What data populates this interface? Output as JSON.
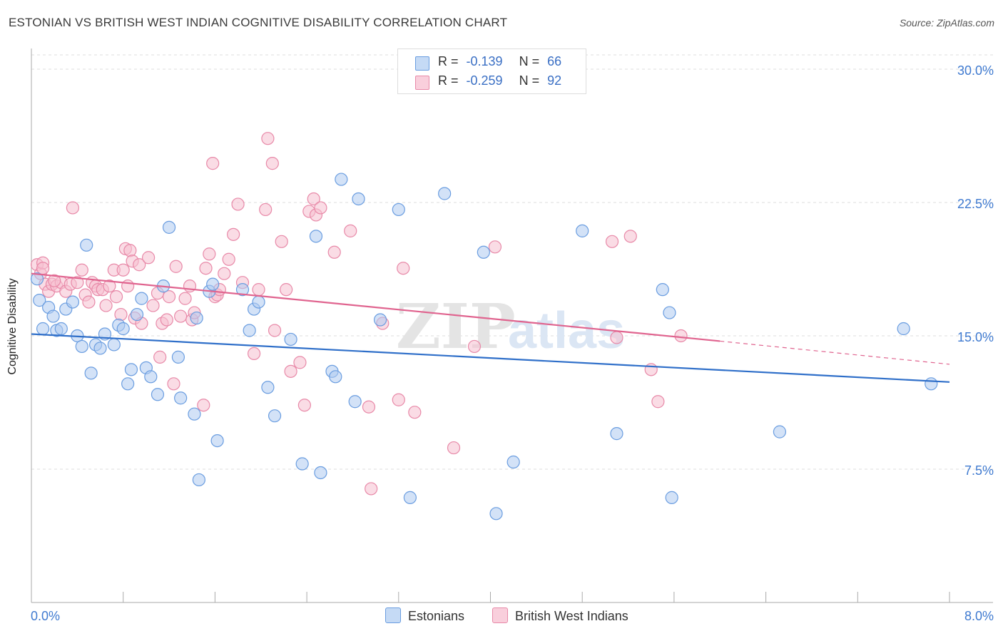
{
  "header": {
    "title": "ESTONIAN VS BRITISH WEST INDIAN COGNITIVE DISABILITY CORRELATION CHART",
    "source": "Source: ZipAtlas.com"
  },
  "stats": {
    "r_label": "R =",
    "n_label": "N =",
    "rows": [
      {
        "r": "-0.139",
        "n": "66"
      },
      {
        "r": "-0.259",
        "n": "92"
      }
    ]
  },
  "legend": {
    "items": [
      "Estonians",
      "British West Indians"
    ]
  },
  "watermark": {
    "zip": "ZIP",
    "atlas": "atlas"
  },
  "colors": {
    "estonians_fill": "#aecbf0",
    "estonians_stroke": "#6a9de0",
    "estonians_line": "#2f6fc9",
    "bwi_fill": "#f6bfd0",
    "bwi_stroke": "#e889a8",
    "bwi_line": "#e0648f",
    "tick_label": "#3f7ad0",
    "grid": "#dddddd"
  },
  "chart_data": {
    "type": "scatter",
    "title": "ESTONIAN VS BRITISH WEST INDIAN COGNITIVE DISABILITY CORRELATION CHART",
    "xlabel": "",
    "ylabel": "Cognitive Disability",
    "xlim": [
      0,
      8
    ],
    "ylim": [
      0,
      30.8
    ],
    "x_tick_labels": [
      "0.0%",
      "8.0%"
    ],
    "y_ticks": [
      7.5,
      15.0,
      22.5,
      30.0
    ],
    "y_tick_labels": [
      "7.5%",
      "15.0%",
      "22.5%",
      "30.0%"
    ],
    "grid": "horizontal dashed",
    "legend_position": "bottom-center",
    "series": [
      {
        "name": "Estonians",
        "r": -0.139,
        "n": 66,
        "trend": {
          "x": [
            0,
            8
          ],
          "y": [
            15.1,
            12.4
          ]
        },
        "points": [
          [
            0.05,
            18.2
          ],
          [
            0.07,
            17.0
          ],
          [
            0.1,
            15.4
          ],
          [
            0.15,
            16.6
          ],
          [
            0.19,
            16.1
          ],
          [
            0.22,
            15.3
          ],
          [
            0.26,
            15.4
          ],
          [
            0.3,
            16.5
          ],
          [
            0.36,
            16.9
          ],
          [
            0.4,
            15.0
          ],
          [
            0.44,
            14.4
          ],
          [
            0.48,
            20.1
          ],
          [
            0.52,
            12.9
          ],
          [
            0.56,
            14.5
          ],
          [
            0.6,
            14.3
          ],
          [
            0.64,
            15.1
          ],
          [
            0.72,
            14.5
          ],
          [
            0.76,
            15.6
          ],
          [
            0.8,
            15.4
          ],
          [
            0.84,
            12.3
          ],
          [
            0.87,
            13.1
          ],
          [
            0.92,
            16.2
          ],
          [
            0.96,
            17.1
          ],
          [
            1.0,
            13.2
          ],
          [
            1.04,
            12.7
          ],
          [
            1.1,
            11.7
          ],
          [
            1.15,
            17.8
          ],
          [
            1.2,
            21.1
          ],
          [
            1.28,
            13.8
          ],
          [
            1.3,
            11.5
          ],
          [
            1.42,
            10.6
          ],
          [
            1.44,
            16.0
          ],
          [
            1.46,
            6.9
          ],
          [
            1.55,
            17.5
          ],
          [
            1.58,
            17.9
          ],
          [
            1.62,
            9.1
          ],
          [
            1.84,
            17.6
          ],
          [
            1.9,
            15.3
          ],
          [
            1.94,
            16.5
          ],
          [
            1.98,
            16.9
          ],
          [
            2.06,
            12.1
          ],
          [
            2.12,
            10.5
          ],
          [
            2.26,
            14.8
          ],
          [
            2.36,
            7.8
          ],
          [
            2.48,
            20.6
          ],
          [
            2.52,
            7.3
          ],
          [
            2.62,
            13.0
          ],
          [
            2.65,
            12.7
          ],
          [
            2.7,
            23.8
          ],
          [
            2.82,
            11.3
          ],
          [
            2.85,
            22.7
          ],
          [
            3.04,
            15.9
          ],
          [
            3.2,
            22.1
          ],
          [
            3.3,
            5.9
          ],
          [
            3.6,
            23.0
          ],
          [
            3.94,
            19.7
          ],
          [
            4.05,
            5.0
          ],
          [
            4.2,
            7.9
          ],
          [
            4.8,
            20.9
          ],
          [
            5.1,
            9.5
          ],
          [
            5.5,
            17.6
          ],
          [
            5.56,
            16.3
          ],
          [
            5.58,
            5.9
          ],
          [
            6.52,
            9.6
          ],
          [
            7.6,
            15.4
          ],
          [
            7.84,
            12.3
          ]
        ]
      },
      {
        "name": "British West Indians",
        "r": -0.259,
        "n": 92,
        "trend": {
          "x": [
            0,
            6.0
          ],
          "y": [
            18.5,
            14.7
          ]
        },
        "trend_dashed": {
          "x": [
            6.0,
            8.0
          ],
          "y": [
            14.7,
            13.4
          ]
        },
        "points": [
          [
            0.05,
            19.0
          ],
          [
            0.08,
            18.5
          ],
          [
            0.1,
            19.1
          ],
          [
            0.12,
            17.9
          ],
          [
            0.15,
            17.5
          ],
          [
            0.18,
            17.9
          ],
          [
            0.22,
            17.8
          ],
          [
            0.26,
            18.0
          ],
          [
            0.3,
            17.5
          ],
          [
            0.34,
            17.9
          ],
          [
            0.36,
            22.2
          ],
          [
            0.4,
            18.0
          ],
          [
            0.44,
            18.7
          ],
          [
            0.47,
            17.3
          ],
          [
            0.5,
            16.9
          ],
          [
            0.53,
            18.0
          ],
          [
            0.56,
            17.8
          ],
          [
            0.58,
            17.6
          ],
          [
            0.62,
            17.6
          ],
          [
            0.65,
            16.7
          ],
          [
            0.68,
            17.8
          ],
          [
            0.72,
            18.7
          ],
          [
            0.74,
            17.2
          ],
          [
            0.78,
            16.2
          ],
          [
            0.8,
            18.7
          ],
          [
            0.82,
            19.9
          ],
          [
            0.84,
            17.8
          ],
          [
            0.86,
            19.8
          ],
          [
            0.88,
            19.2
          ],
          [
            0.9,
            16.0
          ],
          [
            0.94,
            19.0
          ],
          [
            0.96,
            15.7
          ],
          [
            1.02,
            19.4
          ],
          [
            1.06,
            16.7
          ],
          [
            1.1,
            17.4
          ],
          [
            1.12,
            13.8
          ],
          [
            1.14,
            15.7
          ],
          [
            1.18,
            15.9
          ],
          [
            1.2,
            17.2
          ],
          [
            1.24,
            12.3
          ],
          [
            1.26,
            18.9
          ],
          [
            1.3,
            16.1
          ],
          [
            1.34,
            17.1
          ],
          [
            1.38,
            17.8
          ],
          [
            1.4,
            15.9
          ],
          [
            1.42,
            16.3
          ],
          [
            1.5,
            11.1
          ],
          [
            1.52,
            18.8
          ],
          [
            1.55,
            19.6
          ],
          [
            1.58,
            24.7
          ],
          [
            1.6,
            17.2
          ],
          [
            1.62,
            17.3
          ],
          [
            1.64,
            17.6
          ],
          [
            1.68,
            18.5
          ],
          [
            1.72,
            19.3
          ],
          [
            1.76,
            20.7
          ],
          [
            1.8,
            22.4
          ],
          [
            1.84,
            18.0
          ],
          [
            1.94,
            14.0
          ],
          [
            1.98,
            17.6
          ],
          [
            2.04,
            22.1
          ],
          [
            2.06,
            26.1
          ],
          [
            2.1,
            24.7
          ],
          [
            2.12,
            15.3
          ],
          [
            2.18,
            20.3
          ],
          [
            2.22,
            17.6
          ],
          [
            2.26,
            13.0
          ],
          [
            2.34,
            13.5
          ],
          [
            2.38,
            11.1
          ],
          [
            2.42,
            22.0
          ],
          [
            2.46,
            22.7
          ],
          [
            2.48,
            21.8
          ],
          [
            2.52,
            22.2
          ],
          [
            2.64,
            19.7
          ],
          [
            2.78,
            20.9
          ],
          [
            2.94,
            11.0
          ],
          [
            2.96,
            6.4
          ],
          [
            3.06,
            15.7
          ],
          [
            3.2,
            11.4
          ],
          [
            3.24,
            18.8
          ],
          [
            3.34,
            10.7
          ],
          [
            3.68,
            8.7
          ],
          [
            3.86,
            14.4
          ],
          [
            4.04,
            20.0
          ],
          [
            5.06,
            20.3
          ],
          [
            5.1,
            14.9
          ],
          [
            5.22,
            20.6
          ],
          [
            5.4,
            13.1
          ],
          [
            5.46,
            11.3
          ],
          [
            5.66,
            15.0
          ],
          [
            0.1,
            18.8
          ],
          [
            0.2,
            18.1
          ]
        ]
      }
    ]
  }
}
